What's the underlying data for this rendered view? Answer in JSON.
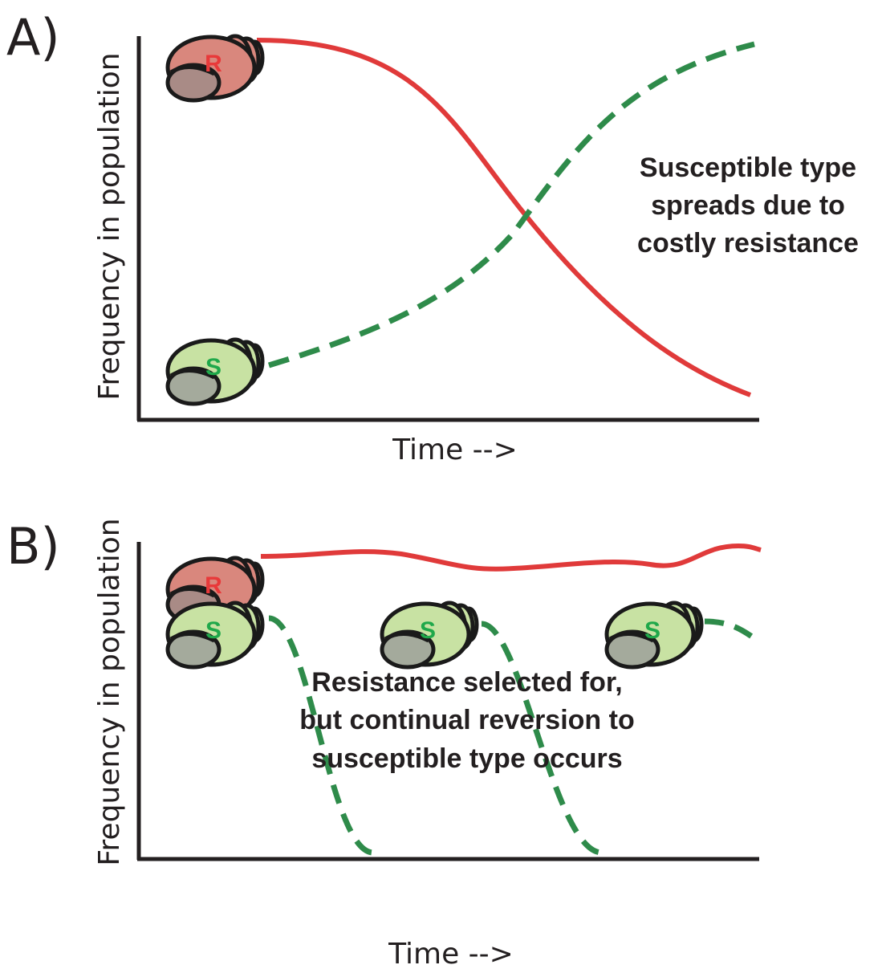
{
  "panels": [
    {
      "label": "A)",
      "y_axis_label": "Frequency in population",
      "x_axis_label": "Time -->",
      "annotation": [
        "Susceptible type",
        "spreads due to",
        "costly resistance"
      ],
      "snails": [
        "R",
        "S"
      ]
    },
    {
      "label": "B)",
      "y_axis_label": "Frequency in population",
      "x_axis_label": "Time -->",
      "annotation": [
        "Resistance selected for,",
        "but continual reversion to",
        "susceptible type occurs"
      ],
      "snails": [
        "R",
        "S",
        "S",
        "S"
      ]
    }
  ]
}
